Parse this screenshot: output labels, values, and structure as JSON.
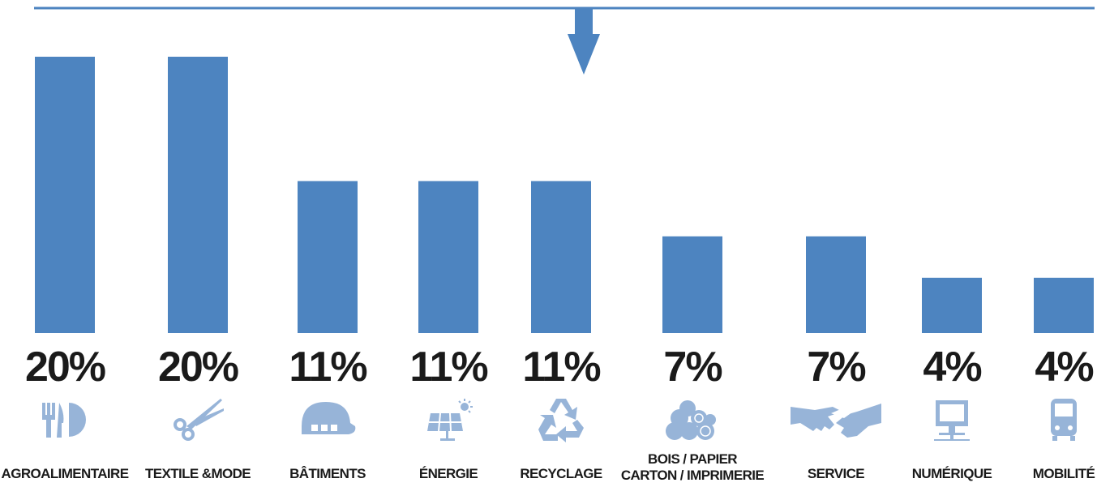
{
  "colors": {
    "bar": "#4d84c0",
    "icon": "#97b4d8",
    "text": "#1a1a1a",
    "line": "#4d84c0"
  },
  "chart_data": {
    "type": "bar",
    "title": "",
    "xlabel": "",
    "ylabel": "",
    "ylim": [
      0,
      20
    ],
    "grid": false,
    "legend": "none",
    "categories": [
      [
        "AGROALIMENTAIRE"
      ],
      [
        "TEXTILE &MODE"
      ],
      [
        "BÂTIMENTS"
      ],
      [
        "ÉNERGIE"
      ],
      [
        "RECYCLAGE"
      ],
      [
        "BOIS / PAPIER",
        "CARTON / IMPRIMERIE"
      ],
      [
        "SERVICE"
      ],
      [
        "NUMÉRIQUE"
      ],
      [
        "MOBILITÉ"
      ]
    ],
    "values": [
      20,
      20,
      11,
      11,
      11,
      7,
      7,
      4,
      4
    ],
    "value_labels": [
      "20%",
      "20%",
      "11%",
      "11%",
      "11%",
      "7%",
      "7%",
      "4%",
      "4%"
    ],
    "icons": [
      "cutlery-plate-icon",
      "scissors-icon",
      "hard-hat-icon",
      "solar-panel-icon",
      "recycle-icon",
      "logs-icon",
      "handshake-icon",
      "computer-icon",
      "bus-icon"
    ]
  }
}
